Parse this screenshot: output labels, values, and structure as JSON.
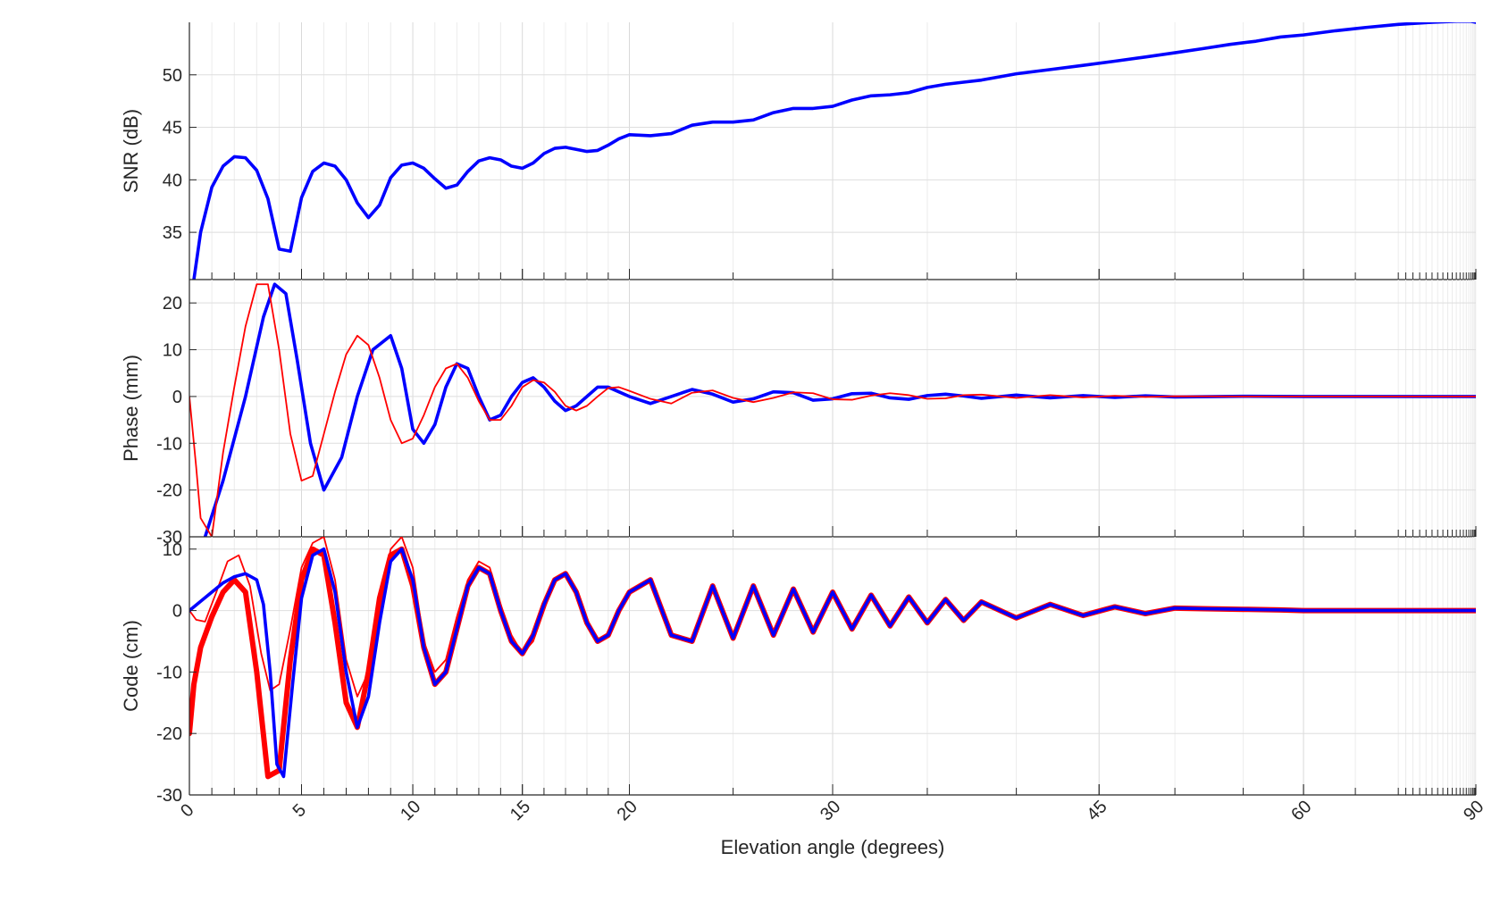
{
  "figure": {
    "xlabel": "Elevation angle (degrees)",
    "x_scale": "sine (tick spacing proportional to sin of elevation angle)",
    "x_ticks": [
      0,
      5,
      10,
      15,
      20,
      30,
      45,
      60,
      90
    ],
    "x_tick_labels": [
      "0",
      "5",
      "10",
      "15",
      "20",
      "30",
      "45",
      "60",
      "90"
    ],
    "x_tick_label_rotation_deg": 45,
    "xlim": [
      0,
      90
    ],
    "grid": true,
    "colors": {
      "blue": "#0000ff",
      "red": "#ff0000",
      "grid": "#e0e0e0",
      "axis": "#262626"
    }
  },
  "chart_data": [
    {
      "type": "line",
      "panel": "snr",
      "ylabel": "SNR (dB)",
      "ylim": [
        30.5,
        55
      ],
      "yticks": [
        35,
        40,
        45,
        50
      ],
      "ytick_labels": [
        "35",
        "40",
        "45",
        "50"
      ],
      "series": [
        {
          "color": "#0000ff",
          "style": "thick",
          "x": [
            0.2,
            0.5,
            1,
            1.5,
            2,
            2.5,
            3,
            3.5,
            4,
            4.5,
            5,
            5.5,
            6,
            6.5,
            7,
            7.5,
            8,
            8.5,
            9,
            9.5,
            10,
            10.5,
            11,
            11.5,
            12,
            12.5,
            13,
            13.5,
            14,
            14.5,
            15,
            15.5,
            16,
            16.5,
            17,
            17.5,
            18,
            18.5,
            19,
            19.5,
            20,
            21,
            22,
            23,
            24,
            25,
            26,
            27,
            28,
            29,
            30,
            31,
            32,
            33,
            34,
            35,
            36,
            37,
            38,
            39,
            40,
            42,
            44,
            46,
            48,
            50,
            52,
            54,
            56,
            58,
            60,
            63,
            66,
            70,
            75,
            80,
            85,
            90
          ],
          "y": [
            30.5,
            35.0,
            39.3,
            41.3,
            42.2,
            42.1,
            40.9,
            38.2,
            33.4,
            33.2,
            38.3,
            40.8,
            41.6,
            41.3,
            40.0,
            37.8,
            36.4,
            37.6,
            40.2,
            41.4,
            41.6,
            41.1,
            40.1,
            39.2,
            39.5,
            40.8,
            41.8,
            42.1,
            41.9,
            41.3,
            41.1,
            41.6,
            42.5,
            43.0,
            43.1,
            42.9,
            42.7,
            42.8,
            43.3,
            43.9,
            44.3,
            44.2,
            44.4,
            45.2,
            45.5,
            45.5,
            45.7,
            46.4,
            46.8,
            46.8,
            47.0,
            47.6,
            48.0,
            48.1,
            48.3,
            48.8,
            49.1,
            49.3,
            49.5,
            49.8,
            50.1,
            50.5,
            50.9,
            51.3,
            51.7,
            52.1,
            52.5,
            52.9,
            53.2,
            53.6,
            53.8,
            54.2,
            54.5,
            54.8,
            55.0,
            55.1,
            55.1,
            55.0
          ]
        }
      ]
    },
    {
      "type": "line",
      "panel": "phase",
      "ylabel": "Phase (mm)",
      "ylim": [
        -30,
        25
      ],
      "yticks": [
        -30,
        -20,
        -10,
        0,
        10,
        20
      ],
      "ytick_labels": [
        "-30",
        "-20",
        "-10",
        "0",
        "10",
        "20"
      ],
      "series": [
        {
          "color": "#0000ff",
          "style": "thick",
          "x": [
            0.7,
            1.5,
            2.5,
            3.3,
            3.8,
            4.3,
            4.8,
            5.4,
            6,
            6.8,
            7.5,
            8.2,
            9,
            9.5,
            10,
            10.5,
            11,
            11.5,
            12,
            12.5,
            13,
            13.5,
            14,
            14.5,
            15,
            15.5,
            16,
            16.5,
            17,
            17.5,
            18,
            18.5,
            19,
            19.5,
            20,
            21,
            22,
            23,
            24,
            25,
            26,
            27,
            28,
            29,
            30,
            31,
            32,
            33,
            34,
            35,
            36,
            37,
            38,
            40,
            42,
            44,
            46,
            48,
            50,
            55,
            60,
            70,
            80,
            90
          ],
          "y": [
            -30,
            -18,
            0,
            17,
            24,
            22,
            8,
            -10,
            -20,
            -13,
            0,
            10,
            13,
            6,
            -7,
            -10,
            -6,
            2,
            7,
            6,
            0,
            -5,
            -4,
            0,
            3,
            4,
            2,
            -1,
            -3,
            -2,
            0,
            2,
            2,
            1,
            0,
            -1.5,
            0,
            1.5,
            0.5,
            -1.2,
            -0.5,
            1,
            0.8,
            -0.8,
            -0.5,
            0.6,
            0.7,
            -0.3,
            -0.6,
            0.2,
            0.5,
            0.1,
            -0.4,
            0.3,
            -0.3,
            0.2,
            -0.2,
            0.15,
            -0.1,
            0.05,
            0,
            0,
            0,
            0
          ]
        },
        {
          "color": "#ff0000",
          "style": "thin",
          "x": [
            0,
            0.3,
            0.5,
            1,
            1.5,
            2,
            2.5,
            3,
            3.5,
            4,
            4.5,
            5,
            5.5,
            6,
            6.5,
            7,
            7.5,
            8,
            8.5,
            9,
            9.5,
            10,
            10.5,
            11,
            11.5,
            12,
            12.5,
            13,
            13.5,
            14,
            14.5,
            15,
            15.5,
            16,
            16.5,
            17,
            17.5,
            18,
            18.5,
            19,
            19.5,
            20,
            21,
            22,
            23,
            24,
            25,
            26,
            27,
            28,
            29,
            30,
            31,
            32,
            33,
            34,
            35,
            36,
            37,
            38,
            40,
            42,
            44,
            46,
            48,
            50,
            55,
            60,
            70,
            80,
            90
          ],
          "y": [
            0,
            -15,
            -26,
            -30,
            -12,
            2,
            15,
            24,
            24,
            10,
            -8,
            -18,
            -17,
            -8,
            1,
            9,
            13,
            11,
            4,
            -5,
            -10,
            -9,
            -4,
            2,
            6,
            7,
            4,
            -1,
            -5,
            -5,
            -2,
            2,
            3.5,
            3,
            1,
            -2,
            -3,
            -2,
            0,
            1.8,
            2,
            1.2,
            -0.5,
            -1.5,
            0.8,
            1.3,
            -0.3,
            -1.2,
            -0.3,
            0.9,
            0.7,
            -0.6,
            -0.7,
            0.2,
            0.7,
            0.3,
            -0.5,
            -0.4,
            0.3,
            0.4,
            -0.3,
            0.3,
            -0.2,
            0.15,
            -0.1,
            0.05,
            0,
            0,
            0,
            0,
            0
          ]
        }
      ]
    },
    {
      "type": "line",
      "panel": "code",
      "ylabel": "Code (cm)",
      "ylim": [
        -30,
        12
      ],
      "yticks": [
        -30,
        -20,
        -10,
        0,
        10
      ],
      "ytick_labels": [
        "-30",
        "-20",
        "-10",
        "0",
        "10"
      ],
      "series": [
        {
          "color": "#ff0000",
          "style": "extra-thick",
          "x": [
            0,
            0.2,
            0.5,
            1,
            1.5,
            2,
            2.5,
            3,
            3.5,
            4,
            4.5,
            5,
            5.5,
            6,
            6.5,
            7,
            7.5,
            8,
            8.5,
            9,
            9.5,
            10,
            10.5,
            11,
            11.5,
            12,
            12.5,
            13,
            13.5,
            14,
            14.5,
            15,
            15.5,
            16,
            16.5,
            17,
            17.5,
            18,
            18.5,
            19,
            19.5,
            20,
            21,
            22,
            23,
            24,
            25,
            26,
            27,
            28,
            29,
            30,
            31,
            32,
            33,
            34,
            35,
            36,
            37,
            38,
            40,
            42,
            44,
            46,
            48,
            50,
            52,
            55,
            58,
            60,
            65,
            70,
            75,
            80,
            90
          ],
          "y": [
            -20,
            -12,
            -6,
            -1,
            3,
            5,
            3,
            -10,
            -27,
            -26,
            -8,
            5,
            10,
            9,
            -2,
            -15,
            -19,
            -10,
            2,
            9,
            10,
            4,
            -6,
            -12,
            -10,
            -3,
            4,
            7,
            6,
            0,
            -5,
            -7,
            -4,
            1,
            5,
            6,
            3,
            -2,
            -5,
            -4,
            0,
            3,
            5,
            -4,
            -5,
            4,
            -4.5,
            4,
            -4,
            3.5,
            -3.5,
            3,
            -3,
            2.5,
            -2.5,
            2.2,
            -2,
            1.8,
            -1.6,
            1.4,
            -1.2,
            1,
            -0.8,
            0.6,
            -0.5,
            0.4,
            0.3,
            0.2,
            0.1,
            0,
            0,
            0,
            0,
            0,
            0
          ]
        },
        {
          "color": "#ff0000",
          "style": "thin",
          "x": [
            0,
            0.3,
            0.7,
            1.2,
            1.7,
            2.2,
            2.7,
            3.2,
            3.6,
            4,
            4.5,
            5,
            5.5,
            6,
            6.5,
            7,
            7.5,
            8,
            8.5,
            9,
            9.5,
            10,
            10.5,
            11,
            11.5,
            12,
            12.5,
            13,
            13.5,
            14,
            14.5,
            15,
            15.5,
            16,
            16.5,
            17,
            17.5,
            18,
            18.5,
            19,
            19.5,
            20,
            21,
            22,
            23,
            24,
            25,
            26,
            27,
            28,
            29,
            30,
            31,
            32,
            33,
            34,
            35,
            36,
            37,
            38,
            40,
            42,
            44,
            46,
            48,
            50,
            52,
            55,
            58,
            60,
            65,
            70,
            75,
            80,
            90
          ],
          "y": [
            0,
            -1.5,
            -1.8,
            3,
            8,
            9,
            4,
            -7,
            -13,
            -12,
            -3,
            7,
            11,
            12,
            5,
            -8,
            -14,
            -10,
            0,
            10,
            12,
            7,
            -5,
            -10,
            -8,
            -1,
            5,
            8,
            7,
            1,
            -4,
            -7,
            -5,
            0,
            5,
            6,
            3,
            -2,
            -5,
            -4,
            0,
            3,
            5,
            -4,
            -5,
            4,
            -4.5,
            4,
            -4,
            3.5,
            -3.5,
            3,
            -3,
            2.5,
            -2.5,
            2.2,
            -2,
            1.8,
            -1.6,
            1.4,
            -1.2,
            1,
            -0.8,
            0.6,
            -0.5,
            0.4,
            0.3,
            0.2,
            0.1,
            0,
            0,
            0,
            0,
            0,
            0
          ]
        },
        {
          "color": "#0000ff",
          "style": "thick",
          "x": [
            0,
            0.5,
            1,
            1.5,
            2,
            2.5,
            3,
            3.3,
            3.6,
            3.9,
            4.2,
            4.6,
            5,
            5.5,
            6,
            6.5,
            7,
            7.5,
            8,
            8.5,
            9,
            9.5,
            10,
            10.5,
            11,
            11.5,
            12,
            12.5,
            13,
            13.5,
            14,
            14.5,
            15,
            15.5,
            16,
            16.5,
            17,
            17.5,
            18,
            18.5,
            19,
            19.5,
            20,
            21,
            22,
            23,
            24,
            25,
            26,
            27,
            28,
            29,
            30,
            31,
            32,
            33,
            34,
            35,
            36,
            37,
            38,
            40,
            42,
            44,
            46,
            48,
            50,
            52,
            55,
            58,
            60,
            65,
            70,
            75,
            80,
            90
          ],
          "y": [
            0,
            1.5,
            3,
            4.5,
            5.5,
            6,
            5,
            1,
            -10,
            -25,
            -27,
            -12,
            2,
            9,
            10,
            3,
            -10,
            -19,
            -14,
            -2,
            8,
            10,
            5,
            -6,
            -12,
            -10,
            -3,
            4,
            7,
            6,
            0,
            -5,
            -7,
            -4,
            1,
            5,
            6,
            3,
            -2,
            -5,
            -4,
            0,
            3,
            5,
            -4,
            -5,
            4,
            -4.5,
            4,
            -4,
            3.5,
            -3.5,
            3,
            -3,
            2.5,
            -2.5,
            2.2,
            -2,
            1.8,
            -1.6,
            1.4,
            -1.2,
            1,
            -0.8,
            0.6,
            -0.5,
            0.4,
            0.3,
            0.2,
            0.1,
            0,
            0,
            0,
            0,
            0,
            0
          ]
        }
      ]
    }
  ]
}
